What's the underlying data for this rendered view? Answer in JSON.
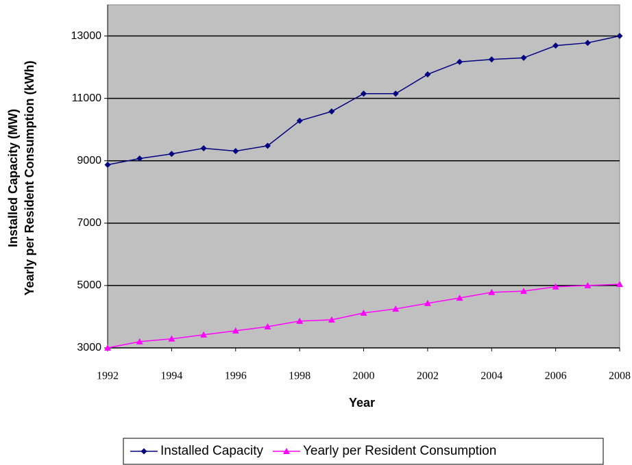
{
  "chart_data": {
    "type": "line",
    "x_label": "Year",
    "y_label": [
      "Installed Capacity (MW)",
      "Yearly per Resident Consumption (kWh)"
    ],
    "x": [
      1992,
      1993,
      1994,
      1995,
      1996,
      1997,
      1998,
      1999,
      2000,
      2001,
      2002,
      2003,
      2004,
      2005,
      2006,
      2007,
      2008
    ],
    "series": [
      {
        "name": "Installed Capacity",
        "color": "#000080",
        "marker": "diamond",
        "values": [
          8870,
          9070,
          9220,
          9400,
          9310,
          9480,
          10280,
          10580,
          11150,
          11150,
          11770,
          12170,
          12250,
          12300,
          12690,
          12780,
          13000
        ]
      },
      {
        "name": "Yearly per Resident Consumption",
        "color": "#ff00ff",
        "marker": "triangle",
        "values": [
          3000,
          3200,
          3290,
          3420,
          3550,
          3680,
          3860,
          3900,
          4120,
          4250,
          4430,
          4600,
          4780,
          4820,
          4960,
          5000,
          5040
        ]
      }
    ],
    "xlim": [
      1992,
      2008
    ],
    "xticks": [
      1992,
      1994,
      1996,
      1998,
      2000,
      2002,
      2004,
      2006,
      2008
    ],
    "ylim": [
      3000,
      14000
    ],
    "yticks": [
      3000,
      5000,
      7000,
      9000,
      11000,
      13000
    ],
    "grid": true,
    "plot_background": "#c0c0c0",
    "legend": "bottom"
  }
}
